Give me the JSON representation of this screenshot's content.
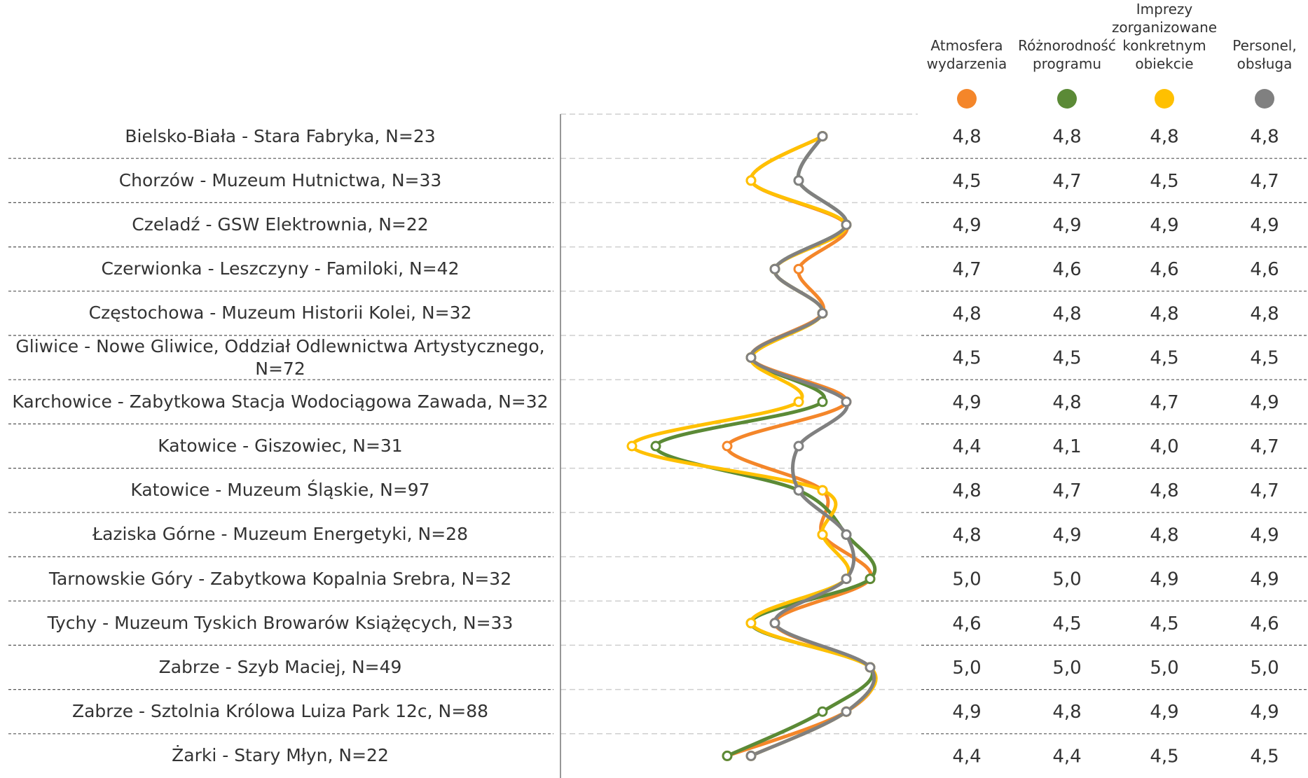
{
  "chart_data": {
    "type": "line",
    "orientation": "horizontal",
    "categories": [
      "Bielsko-Biała - Stara Fabryka, N=23",
      "Chorzów - Muzeum Hutnictwa, N=33",
      "Czeladź - GSW Elektrownia, N=22",
      "Czerwionka - Leszczyny - Familoki, N=42",
      "Częstochowa - Muzeum Historii Kolei, N=32",
      "Gliwice - Nowe Gliwice, Oddział Odlewnictwa Artystycznego, N=72",
      "Karchowice - Zabytkowa Stacja Wodociągowa Zawada, N=32",
      "Katowice - Giszowiec, N=31",
      "Katowice - Muzeum Śląskie, N=97",
      "Łaziska Górne - Muzeum Energetyki, N=28",
      "Tarnowskie Góry - Zabytkowa Kopalnia Srebra, N=32",
      "Tychy - Muzeum Tyskich Browarów Książęcych, N=33",
      "Zabrze - Szyb Maciej, N=49",
      "Zabrze - Sztolnia Królowa Luiza Park 12c, N=88",
      "Żarki - Stary Młyn, N=22"
    ],
    "series": [
      {
        "name": "Atmosfera wydarzenia",
        "color": "#f4862a",
        "values": [
          4.8,
          4.5,
          4.9,
          4.7,
          4.8,
          4.5,
          4.9,
          4.4,
          4.8,
          4.8,
          5.0,
          4.6,
          5.0,
          4.9,
          4.4
        ],
        "value_labels": [
          "4,8",
          "4,5",
          "4,9",
          "4,7",
          "4,8",
          "4,5",
          "4,9",
          "4,4",
          "4,8",
          "4,8",
          "5,0",
          "4,6",
          "5,0",
          "4,9",
          "4,4"
        ]
      },
      {
        "name": "Różnorodność programu",
        "color": "#5b8a36",
        "values": [
          4.8,
          4.7,
          4.9,
          4.6,
          4.8,
          4.5,
          4.8,
          4.1,
          4.7,
          4.9,
          5.0,
          4.5,
          5.0,
          4.8,
          4.4
        ],
        "value_labels": [
          "4,8",
          "4,7",
          "4,9",
          "4,6",
          "4,8",
          "4,5",
          "4,8",
          "4,1",
          "4,7",
          "4,9",
          "5,0",
          "4,5",
          "5,0",
          "4,8",
          "4,4"
        ]
      },
      {
        "name": "Imprezy zorganizowane konkretnym obiekcie",
        "color": "#ffc000",
        "values": [
          4.8,
          4.5,
          4.9,
          4.6,
          4.8,
          4.5,
          4.7,
          4.0,
          4.8,
          4.8,
          4.9,
          4.5,
          5.0,
          4.9,
          4.5
        ],
        "value_labels": [
          "4,8",
          "4,5",
          "4,9",
          "4,6",
          "4,8",
          "4,5",
          "4,7",
          "4,0",
          "4,8",
          "4,8",
          "4,9",
          "4,5",
          "5,0",
          "4,9",
          "4,5"
        ]
      },
      {
        "name": "Personel, obsługa",
        "color": "#808080",
        "values": [
          4.8,
          4.7,
          4.9,
          4.6,
          4.8,
          4.5,
          4.9,
          4.7,
          4.7,
          4.9,
          4.9,
          4.6,
          5.0,
          4.9,
          4.5
        ],
        "value_labels": [
          "4,8",
          "4,7",
          "4,9",
          "4,6",
          "4,8",
          "4,5",
          "4,9",
          "4,7",
          "4,7",
          "4,9",
          "4,9",
          "4,6",
          "5,0",
          "4,9",
          "4,5"
        ]
      }
    ],
    "xlim": [
      3.7,
      5.2
    ],
    "markers": true
  }
}
